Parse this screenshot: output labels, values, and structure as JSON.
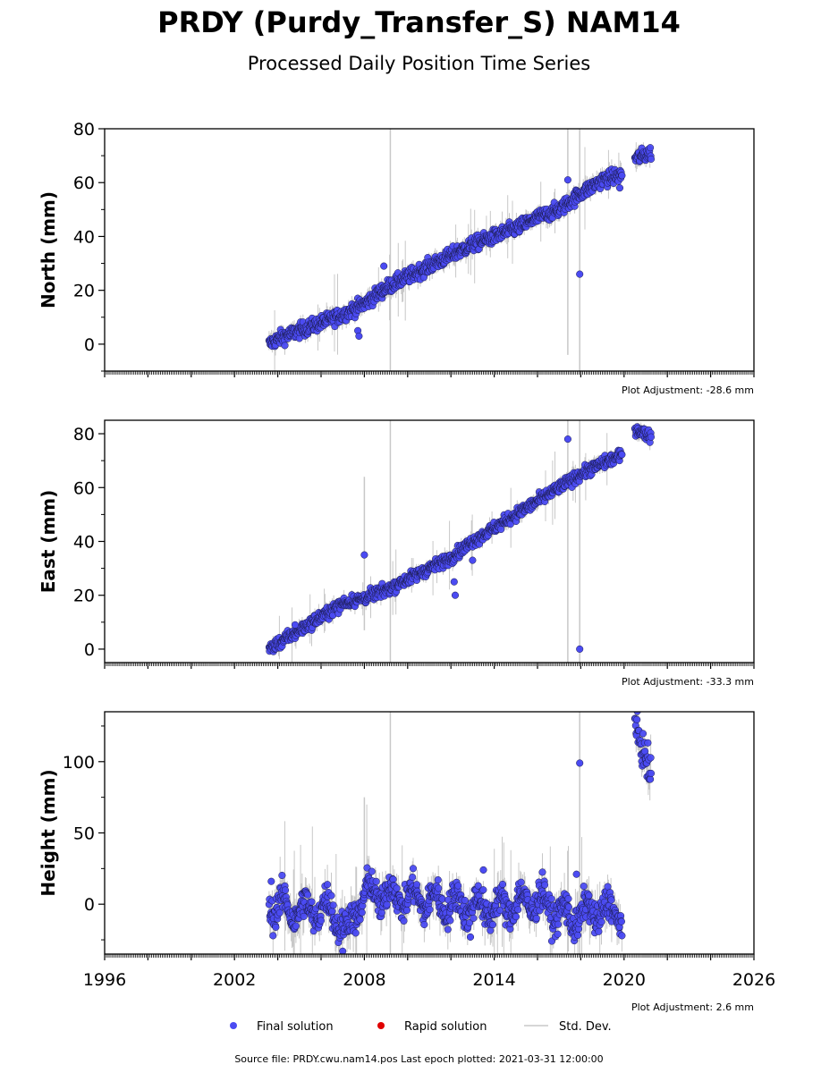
{
  "title": "PRDY (Purdy_Transfer_S) NAM14",
  "subtitle": "Processed Daily Position Time Series",
  "source_note": "Source file: PRDY.cwu.nam14.pos  Last epoch plotted: 2021-03-31 12:00:00",
  "legend": [
    {
      "label": "Final solution",
      "color": "#4B4BF2",
      "kind": "dot"
    },
    {
      "label": "Rapid solution",
      "color": "#E00000",
      "kind": "dot"
    },
    {
      "label": "Std. Dev.",
      "color": "#C8C8C8",
      "kind": "line"
    }
  ],
  "colors": {
    "final": "#4B4BF2",
    "outline": "#1a1a4a",
    "stddev": "#C8C8C8",
    "stddev_dark": "#505050"
  },
  "chart_data": [
    {
      "type": "scatter",
      "ylabel": "North (mm)",
      "adjustment": "Plot Adjustment: -28.6 mm",
      "xlim": [
        1996,
        2026
      ],
      "ylim": [
        -10,
        80
      ],
      "yticks": [
        0,
        20,
        40,
        60,
        80
      ],
      "xticks": [
        1996,
        2002,
        2008,
        2014,
        2020,
        2026
      ],
      "show_xtick_labels": false,
      "series_segments": [
        {
          "x": [
            2003.6,
            2004.0,
            2005.0,
            2006.0,
            2007.0,
            2008.0,
            2009.0,
            2010.0,
            2011.0,
            2012.0,
            2013.0,
            2014.0,
            2015.0,
            2016.0,
            2017.0,
            2018.0,
            2019.0,
            2019.9
          ],
          "y": [
            0,
            2,
            5,
            8,
            11,
            15,
            21,
            25,
            29,
            33,
            37,
            40,
            43,
            47,
            50,
            56,
            61,
            63
          ]
        },
        {
          "x": [
            2020.5,
            2021.25
          ],
          "y": [
            69,
            71
          ]
        }
      ],
      "noise": 2.2,
      "outliers": [
        {
          "x": 2007.7,
          "y": 5
        },
        {
          "x": 2007.75,
          "y": 3
        },
        {
          "x": 2008.9,
          "y": 29
        },
        {
          "x": 2017.4,
          "y": 61
        },
        {
          "x": 2017.95,
          "y": 26
        },
        {
          "x": 2019.8,
          "y": 58
        }
      ],
      "spikes": [
        {
          "x": 2009.2,
          "low": -10,
          "high": 80
        },
        {
          "x": 2017.4,
          "low": -4,
          "high": 80
        },
        {
          "x": 2017.95,
          "low": -10,
          "high": 80
        }
      ]
    },
    {
      "type": "scatter",
      "ylabel": "East (mm)",
      "adjustment": "Plot Adjustment: -33.3 mm",
      "xlim": [
        1996,
        2026
      ],
      "ylim": [
        -5,
        85
      ],
      "yticks": [
        0,
        20,
        40,
        60,
        80
      ],
      "xticks": [
        1996,
        2002,
        2008,
        2014,
        2020,
        2026
      ],
      "show_xtick_labels": false,
      "series_segments": [
        {
          "x": [
            2003.6,
            2004.0,
            2005.0,
            2006.0,
            2007.0,
            2008.0,
            2009.0,
            2010.0,
            2011.0,
            2012.0,
            2013.0,
            2014.0,
            2015.0,
            2016.0,
            2017.0,
            2018.0,
            2019.0,
            2019.9
          ],
          "y": [
            0,
            2,
            7,
            12,
            17,
            19,
            22,
            26,
            30,
            34,
            40,
            45,
            50,
            55,
            60,
            65,
            69,
            72
          ]
        },
        {
          "x": [
            2020.5,
            2021.25
          ],
          "y": [
            82,
            79
          ]
        }
      ],
      "noise": 1.8,
      "outliers": [
        {
          "x": 2004.8,
          "y": 9
        },
        {
          "x": 2008.0,
          "y": 35
        },
        {
          "x": 2012.15,
          "y": 25
        },
        {
          "x": 2012.2,
          "y": 20
        },
        {
          "x": 2013.0,
          "y": 33
        },
        {
          "x": 2017.4,
          "y": 78
        },
        {
          "x": 2017.95,
          "y": 0
        }
      ],
      "spikes": [
        {
          "x": 2009.2,
          "low": -5,
          "high": 85
        },
        {
          "x": 2017.4,
          "low": -5,
          "high": 85
        },
        {
          "x": 2017.95,
          "low": -5,
          "high": 85
        },
        {
          "x": 2008.0,
          "low": 7,
          "high": 64
        }
      ]
    },
    {
      "type": "scatter",
      "ylabel": "Height (mm)",
      "adjustment": "Plot Adjustment: 2.6 mm",
      "xlim": [
        1996,
        2026
      ],
      "ylim": [
        -35,
        135
      ],
      "yticks": [
        0,
        50,
        100
      ],
      "xticks": [
        1996,
        2002,
        2008,
        2014,
        2020,
        2026
      ],
      "show_xtick_labels": true,
      "series_segments": [
        {
          "x": [
            2003.6,
            2005.0,
            2006.5,
            2007.2,
            2008.0,
            2010.0,
            2012.0,
            2014.0,
            2016.0,
            2017.5,
            2018.5,
            2019.9
          ],
          "y": [
            0,
            -5,
            -3,
            -20,
            8,
            5,
            0,
            -3,
            3,
            -10,
            -5,
            -5
          ]
        },
        {
          "x": [
            2020.5,
            2021.25
          ],
          "y": [
            125,
            90
          ]
        }
      ],
      "noise": 9,
      "outliers": [
        {
          "x": 2017.95,
          "y": 99
        },
        {
          "x": 2017.8,
          "y": 21
        },
        {
          "x": 2013.5,
          "y": 24
        },
        {
          "x": 2012.9,
          "y": -23
        },
        {
          "x": 2007.0,
          "y": -33
        },
        {
          "x": 2003.7,
          "y": 16
        }
      ],
      "spikes": [
        {
          "x": 2009.2,
          "low": -35,
          "high": 135
        },
        {
          "x": 2017.95,
          "low": -35,
          "high": 135
        },
        {
          "x": 2008.0,
          "low": -10,
          "high": 75
        }
      ]
    }
  ]
}
